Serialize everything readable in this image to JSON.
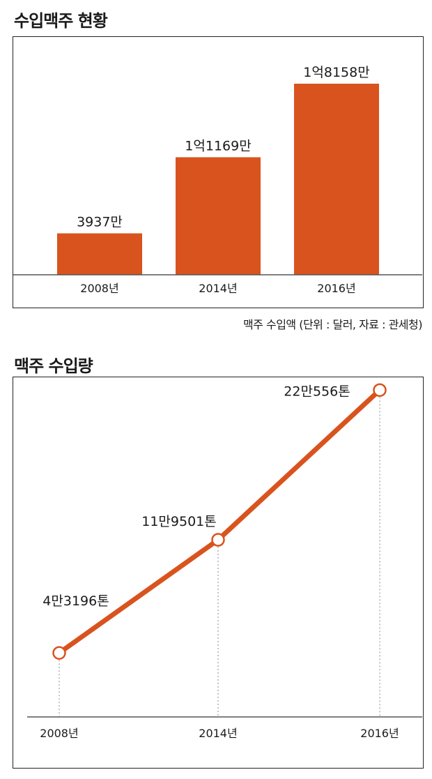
{
  "colors": {
    "accent": "#d9531e",
    "axis": "#555555",
    "text": "#1a1a1a"
  },
  "bar_section": {
    "title": "수입맥주 현황",
    "caption": "맥주 수입액 (단위 : 달러, 자료 : 관세청)"
  },
  "line_section": {
    "title": "맥주 수입량"
  },
  "chart_data": [
    {
      "type": "bar",
      "title": "수입맥주 현황",
      "categories": [
        "2008년",
        "2014년",
        "2016년"
      ],
      "values": [
        39370000,
        111690000,
        181580000
      ],
      "value_labels": [
        "3937만",
        "1억1169만",
        "1억8158만"
      ],
      "ylabel": "",
      "xlabel": "",
      "ylim": [
        0,
        200000000
      ],
      "grid": false
    },
    {
      "type": "line",
      "title": "맥주 수입량",
      "categories": [
        "2008년",
        "2014년",
        "2016년"
      ],
      "values": [
        43196,
        119501,
        220556
      ],
      "value_labels": [
        "4만3196톤",
        "11만9501톤",
        "22만556톤"
      ],
      "ylabel": "",
      "xlabel": "",
      "ylim": [
        0,
        240000
      ],
      "grid": false
    }
  ]
}
